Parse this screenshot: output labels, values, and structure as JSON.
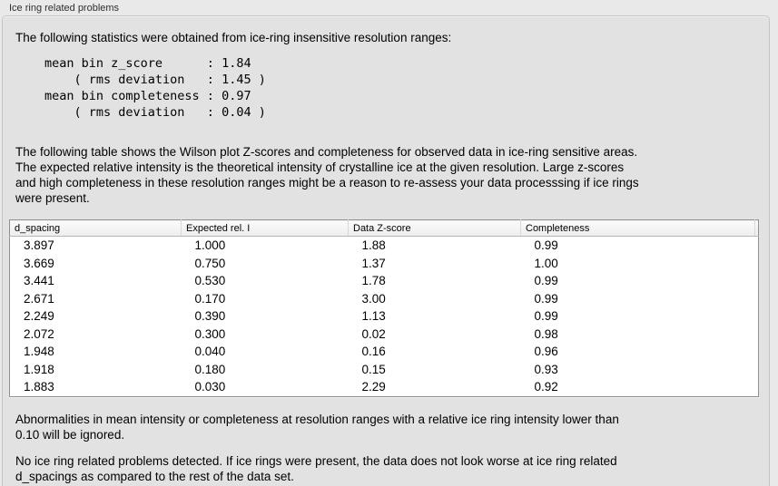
{
  "window": {
    "title": "Ice ring related problems"
  },
  "panel": {
    "intro": "The following statistics were obtained from ice-ring insensitive resolution ranges:",
    "stats_block": "mean bin z_score      : 1.84\n    ( rms deviation   : 1.45 )\nmean bin completeness : 0.97\n    ( rms deviation   : 0.04 )",
    "stats": {
      "mean_bin_z_score": "1.84",
      "z_score_rms_deviation": "1.45",
      "mean_bin_completeness": "0.97",
      "completeness_rms_deviation": "0.04"
    },
    "table_description": "The following table shows the Wilson plot Z-scores and completeness for observed data in ice-ring sensitive areas.\nThe expected relative intensity is the theoretical intensity of crystalline ice at the given resolution. Large z-scores\nand high completeness in these resolution ranges might be a reason to re-assess your data processsing if ice rings\nwere present.",
    "note_ignore": "Abnormalities in mean intensity or completeness at resolution ranges with a relative ice ring intensity lower than\n0.10 will be ignored.",
    "conclusion": "No ice ring related problems detected. If ice rings were present, the data does not look worse at ice ring related\nd_spacings as compared to the rest of the data set."
  },
  "table": {
    "columns": [
      "d_spacing",
      "Expected rel. I",
      "Data Z-score",
      "Completeness"
    ],
    "rows": [
      [
        "3.897",
        "1.000",
        "1.88",
        "0.99"
      ],
      [
        "3.669",
        "0.750",
        "1.37",
        "1.00"
      ],
      [
        "3.441",
        "0.530",
        "1.78",
        "0.99"
      ],
      [
        "2.671",
        "0.170",
        "3.00",
        "0.99"
      ],
      [
        "2.249",
        "0.390",
        "1.13",
        "0.99"
      ],
      [
        "2.072",
        "0.300",
        "0.02",
        "0.98"
      ],
      [
        "1.948",
        "0.040",
        "0.16",
        "0.96"
      ],
      [
        "1.918",
        "0.180",
        "0.15",
        "0.93"
      ],
      [
        "1.883",
        "0.030",
        "2.29",
        "0.92"
      ]
    ]
  }
}
